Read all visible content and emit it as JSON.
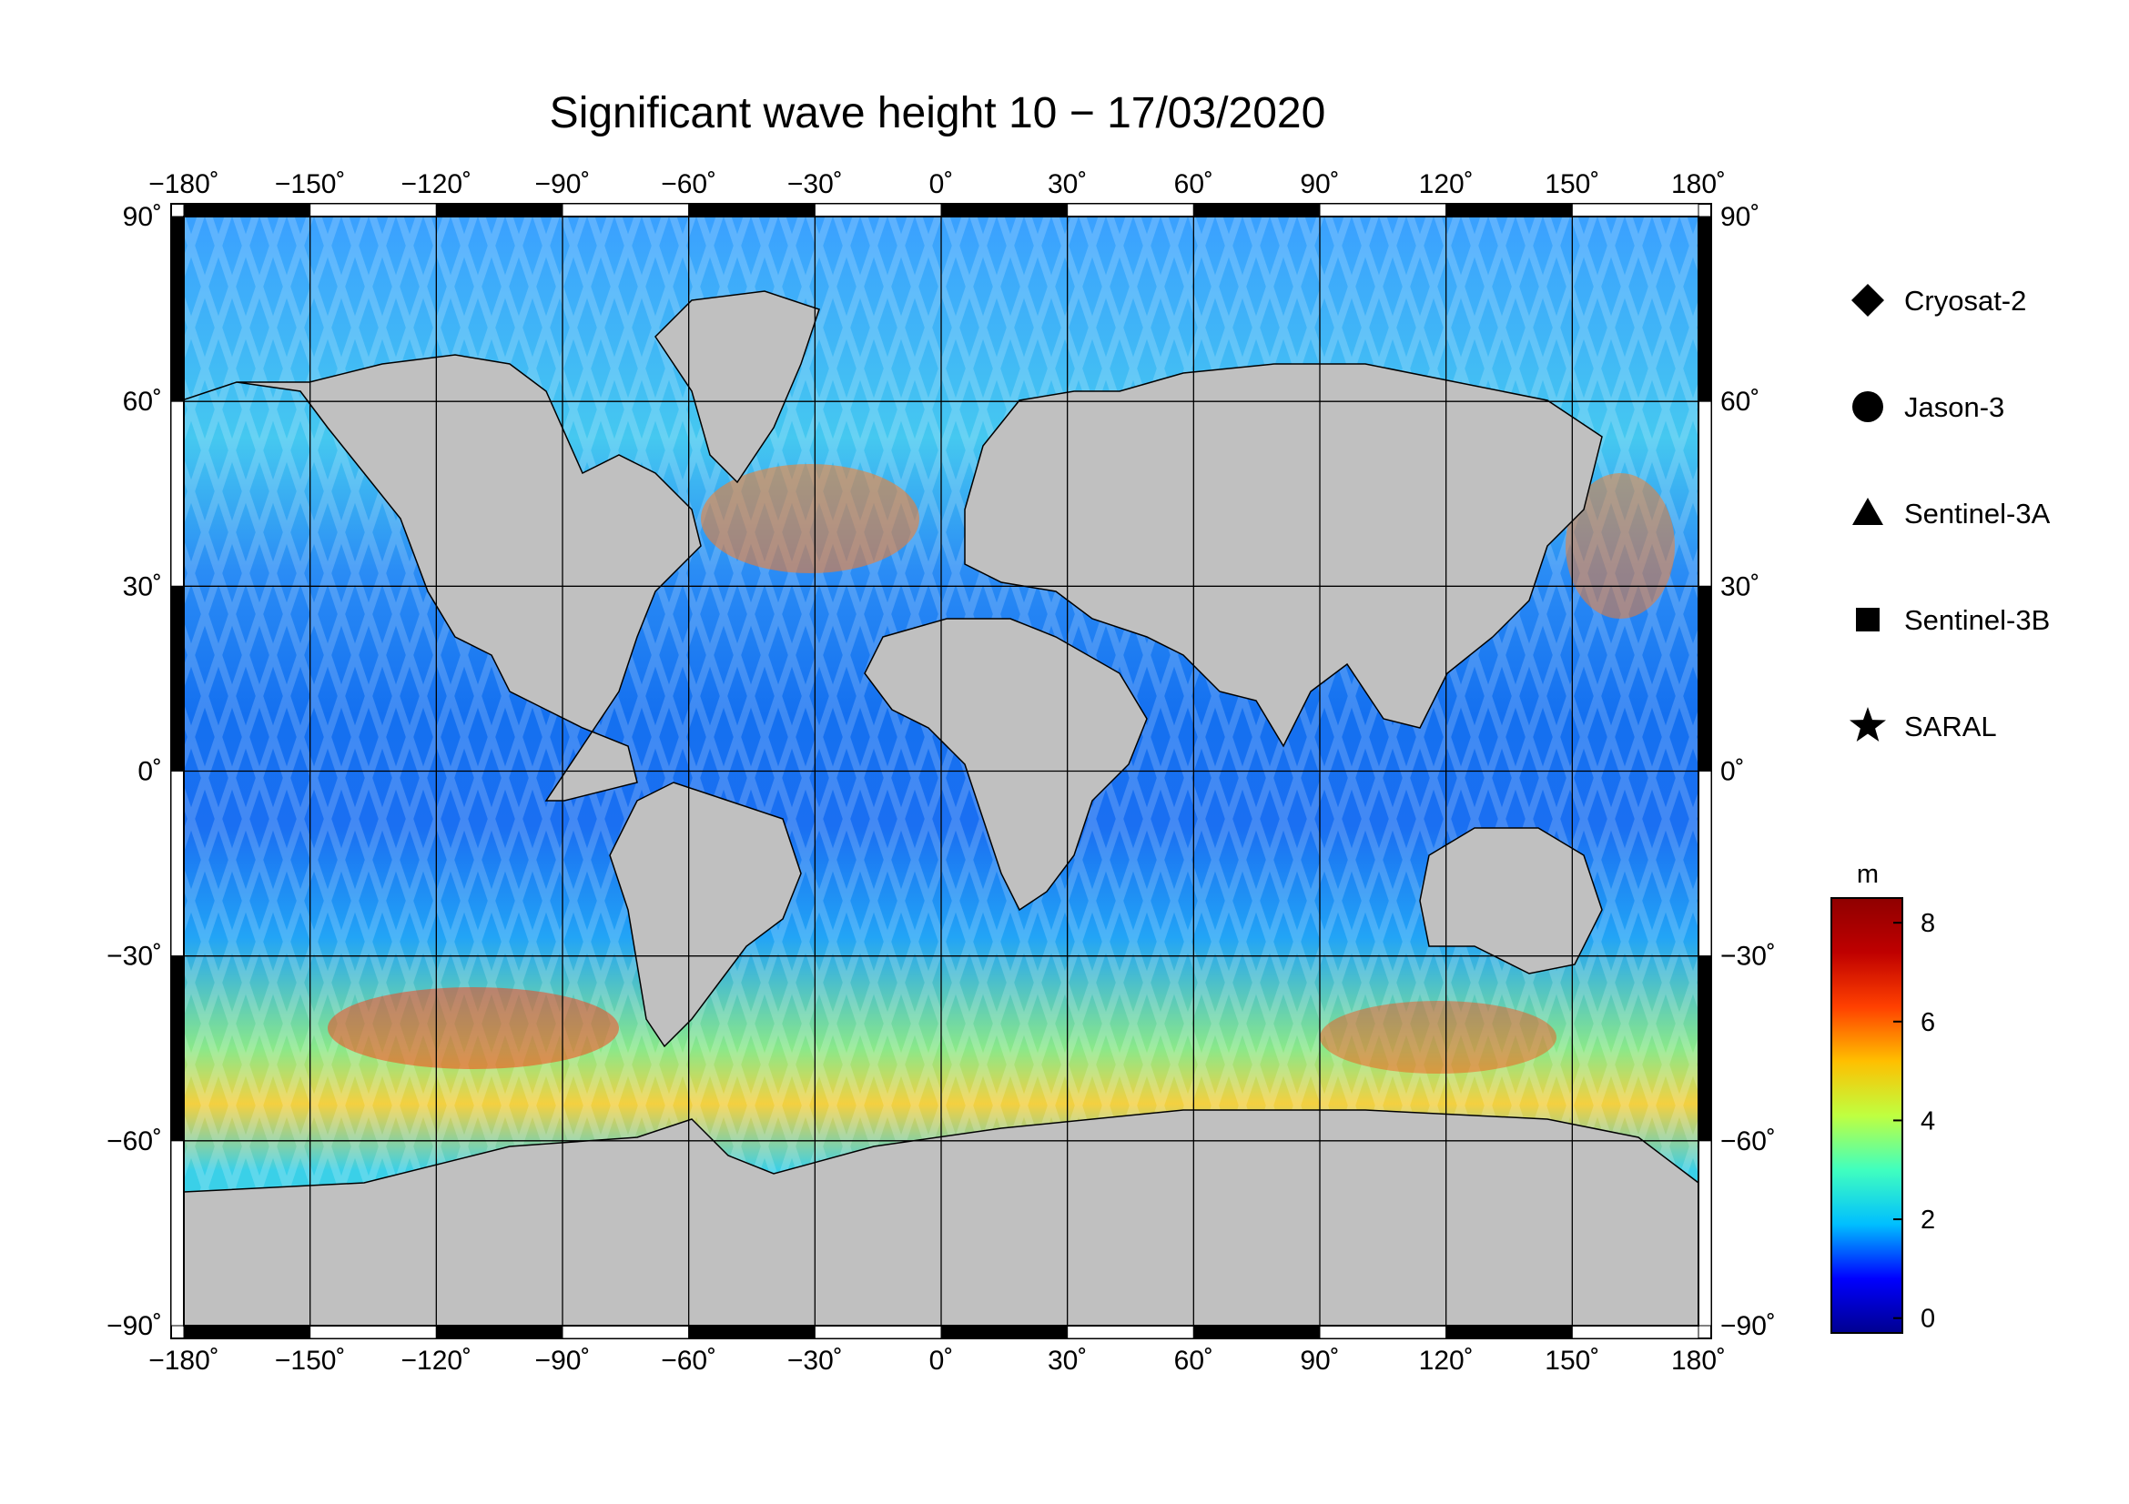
{
  "title": "Significant wave height 10 − 17/03/2020",
  "map": {
    "projection": "equirectangular",
    "lon_range": [
      -180,
      180
    ],
    "lat_range": [
      -90,
      90
    ],
    "lon_ticks": [
      -180,
      -150,
      -120,
      -90,
      -60,
      -30,
      0,
      30,
      60,
      90,
      120,
      150,
      180
    ],
    "lat_ticks": [
      90,
      60,
      30,
      0,
      -30,
      -60,
      -90
    ],
    "lon_tick_labels": [
      "−180˚",
      "−150˚",
      "−120˚",
      "−90˚",
      "−60˚",
      "−30˚",
      "0˚",
      "30˚",
      "60˚",
      "90˚",
      "120˚",
      "150˚",
      "180˚"
    ],
    "lat_tick_labels": [
      "90˚",
      "60˚",
      "30˚",
      "0˚",
      "−30˚",
      "−60˚",
      "−90˚"
    ],
    "grid": true,
    "land_color": "#c0c0c0",
    "ice_color": "#ffffff",
    "coastline_color": "#000000"
  },
  "legend": {
    "placement": "right",
    "items": [
      {
        "symbol": "diamond",
        "label": "Cryosat-2"
      },
      {
        "symbol": "circle",
        "label": "Jason-3"
      },
      {
        "symbol": "triangle",
        "label": "Sentinel-3A"
      },
      {
        "symbol": "square",
        "label": "Sentinel-3B"
      },
      {
        "symbol": "star",
        "label": "SARAL"
      }
    ]
  },
  "colorbar": {
    "unit": "m",
    "range": [
      -0.3,
      8.5
    ],
    "ticks": [
      8,
      6,
      4,
      2,
      0
    ],
    "tick_labels": [
      "8",
      "6",
      "4",
      "2",
      "0"
    ],
    "colormap": "jet",
    "colors": [
      "#00008f",
      "#0000ff",
      "#00bfff",
      "#40ffbf",
      "#bfff40",
      "#ffbf00",
      "#ff4000",
      "#bf0000",
      "#8f0000"
    ]
  }
}
